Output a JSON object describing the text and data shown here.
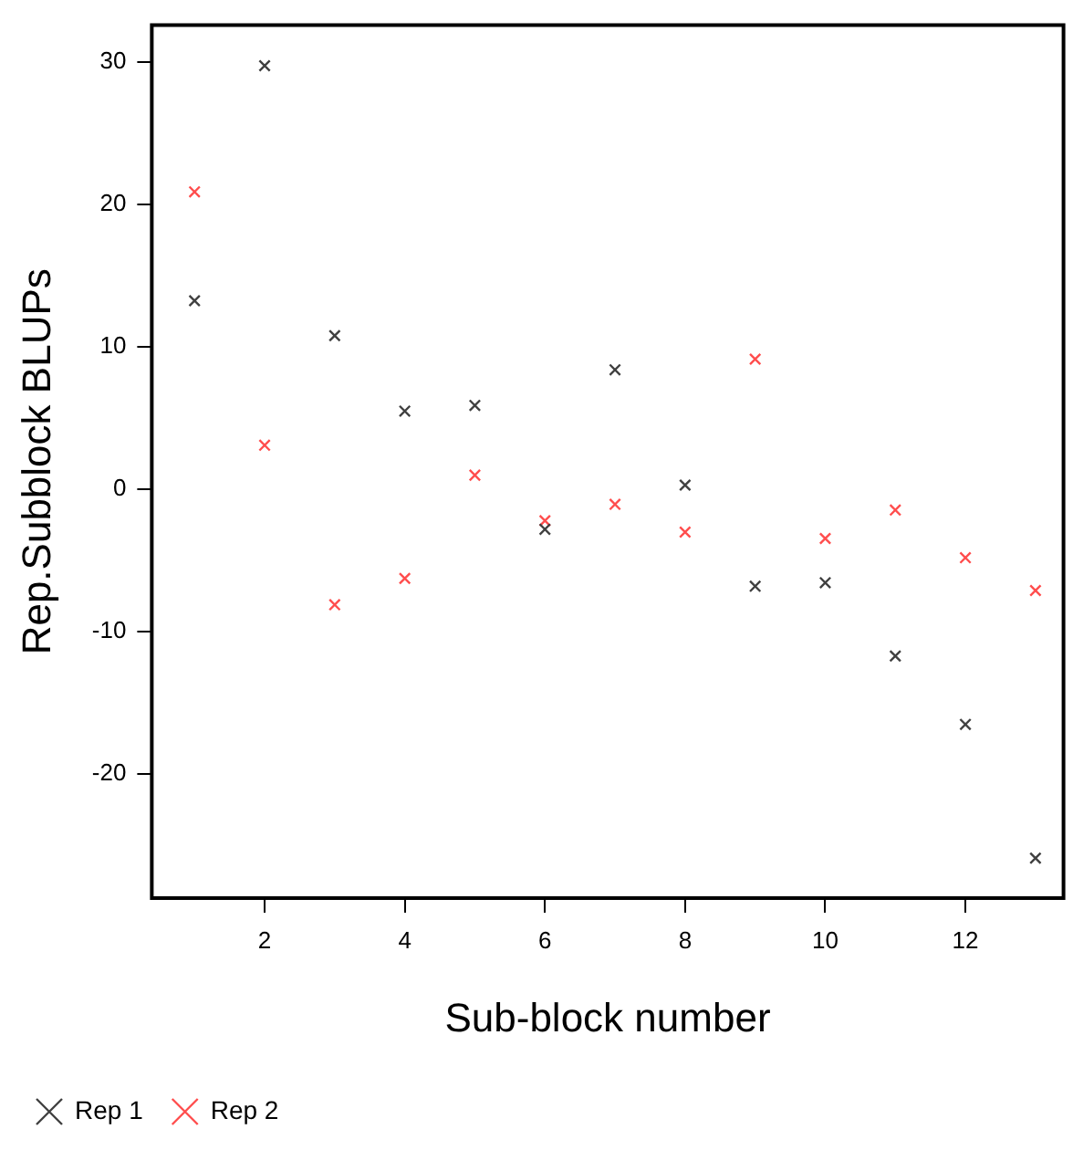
{
  "chart_data": {
    "type": "scatter",
    "xlabel": "Sub-block number",
    "ylabel": "Rep.Subblock BLUPs",
    "x": [
      1,
      2,
      3,
      4,
      5,
      6,
      7,
      8,
      9,
      10,
      11,
      12,
      13
    ],
    "series": [
      {
        "name": "Rep 1",
        "color": "#404040",
        "values": [
          13.25,
          29.75,
          10.8,
          5.5,
          5.9,
          -2.8,
          8.4,
          0.3,
          -6.8,
          -6.55,
          -11.7,
          -16.5,
          -25.9
        ]
      },
      {
        "name": "Rep 2",
        "color": "#ff4d4d",
        "values": [
          20.9,
          3.1,
          -8.1,
          -6.25,
          1.0,
          -2.2,
          -1.05,
          -3.0,
          9.15,
          -3.45,
          -1.45,
          -4.8,
          -7.1
        ]
      }
    ],
    "xlim": [
      0.39,
      13.4
    ],
    "xticks": [
      2,
      4,
      6,
      8,
      10,
      12
    ],
    "ylim": [
      -28.7,
      32.6
    ],
    "yticks": [
      -20,
      -10,
      0,
      10,
      20,
      30
    ],
    "grid": false,
    "legend": "bottom left",
    "marker": "cross"
  }
}
